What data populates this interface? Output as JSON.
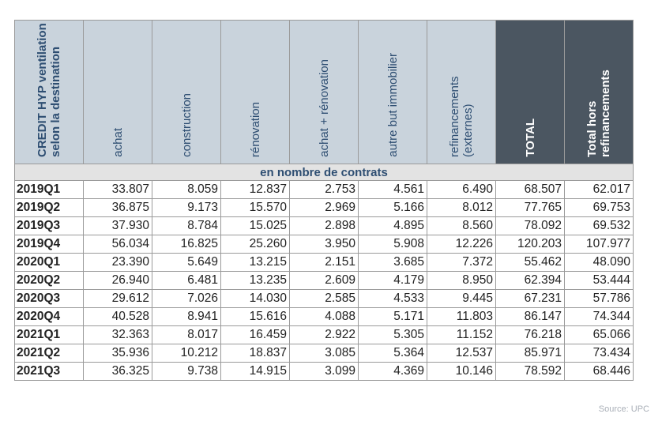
{
  "table": {
    "columns": [
      "CREDIT HYP ventilation selon la destination",
      "achat",
      "construction",
      "rénovation",
      "achat + rénovation",
      "autre but immobilier",
      "refinancements (externes)",
      "TOTAL",
      "Total hors refinancements"
    ],
    "subheader": "en nombre de contrats",
    "rows": [
      [
        "2019Q1",
        "33.807",
        "8.059",
        "12.837",
        "2.753",
        "4.561",
        "6.490",
        "68.507",
        "62.017"
      ],
      [
        "2019Q2",
        "36.875",
        "9.173",
        "15.570",
        "2.969",
        "5.166",
        "8.012",
        "77.765",
        "69.753"
      ],
      [
        "2019Q3",
        "37.930",
        "8.784",
        "15.025",
        "2.898",
        "4.895",
        "8.560",
        "78.092",
        "69.532"
      ],
      [
        "2019Q4",
        "56.034",
        "16.825",
        "25.260",
        "3.950",
        "5.908",
        "12.226",
        "120.203",
        "107.977"
      ],
      [
        "2020Q1",
        "23.390",
        "5.649",
        "13.215",
        "2.151",
        "3.685",
        "7.372",
        "55.462",
        "48.090"
      ],
      [
        "2020Q2",
        "26.940",
        "6.481",
        "13.235",
        "2.609",
        "4.179",
        "8.950",
        "62.394",
        "53.444"
      ],
      [
        "2020Q3",
        "29.612",
        "7.026",
        "14.030",
        "2.585",
        "4.533",
        "9.445",
        "67.231",
        "57.786"
      ],
      [
        "2020Q4",
        "40.528",
        "8.941",
        "15.616",
        "4.088",
        "5.171",
        "11.803",
        "86.147",
        "74.344"
      ],
      [
        "2021Q1",
        "32.363",
        "8.017",
        "16.459",
        "2.922",
        "5.305",
        "11.152",
        "76.218",
        "65.066"
      ],
      [
        "2021Q2",
        "35.936",
        "10.212",
        "18.837",
        "3.085",
        "5.364",
        "12.537",
        "85.971",
        "73.434"
      ],
      [
        "2021Q3",
        "36.325",
        "9.738",
        "14.915",
        "3.099",
        "4.369",
        "10.146",
        "78.592",
        "68.446"
      ]
    ]
  },
  "source": "Source: UPC"
}
